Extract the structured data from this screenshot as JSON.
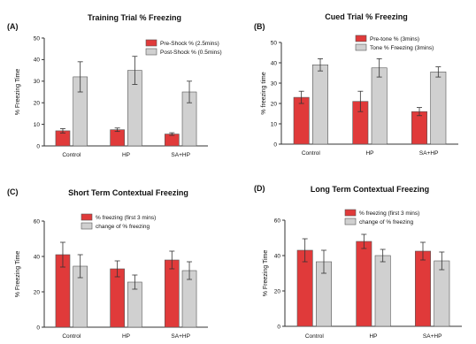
{
  "chart_data": [
    {
      "type": "bar",
      "panel_label": "(A)",
      "title": "Training Trial % Freezing",
      "xlabel": "",
      "ylabel": "% Freezing Time",
      "categories": [
        "Control",
        "HP",
        "SA+HP"
      ],
      "ylim": [
        0,
        50
      ],
      "yticks": [
        "0",
        "10",
        "20",
        "30",
        "40",
        "50"
      ],
      "yticks_values": [
        0,
        10,
        20,
        30,
        40,
        50
      ],
      "legend_position": "top-right",
      "series": [
        {
          "name": "Pre-Shock % (2.5mins)",
          "color": "#e03a3a",
          "values": [
            7,
            7.5,
            5.5
          ],
          "errors": [
            1,
            0.8,
            0.6
          ]
        },
        {
          "name": "Post-Shock % (0.5mins)",
          "color": "#d0d0d0",
          "values": [
            32,
            35,
            25
          ],
          "errors": [
            7,
            6.5,
            5
          ]
        }
      ]
    },
    {
      "type": "bar",
      "panel_label": "(B)",
      "title": "Cued Trial % Freezing",
      "xlabel": "",
      "ylabel": "% freezing time",
      "categories": [
        "Control",
        "HP",
        "SA+HP"
      ],
      "ylim": [
        0,
        50
      ],
      "yticks": [
        "0",
        "10",
        "20",
        "30",
        "40",
        "50"
      ],
      "yticks_values": [
        0,
        10,
        20,
        30,
        40,
        50
      ],
      "legend_position": "top-right",
      "series": [
        {
          "name": "Pre-tone % (3mins)",
          "color": "#e03a3a",
          "values": [
            23,
            21,
            16
          ],
          "errors": [
            3,
            5,
            2
          ]
        },
        {
          "name": "Tone % Freezing (3mins)",
          "color": "#d0d0d0",
          "values": [
            39,
            37.5,
            35.5
          ],
          "errors": [
            3,
            4.5,
            2.5
          ]
        }
      ]
    },
    {
      "type": "bar",
      "panel_label": "(C)",
      "title": "Short Term Contextual Freezing",
      "xlabel": "",
      "ylabel": "% Freezing Time",
      "categories": [
        "Control",
        "HP",
        "SA+HP"
      ],
      "ylim": [
        0,
        60
      ],
      "yticks": [
        "0",
        "20",
        "40",
        "60"
      ],
      "yticks_values": [
        0,
        20,
        40,
        60
      ],
      "legend_position": "top-right",
      "series": [
        {
          "name": "% freezing (first 3 mins)",
          "color": "#e03a3a",
          "values": [
            41,
            33,
            38
          ],
          "errors": [
            7,
            4.5,
            5
          ]
        },
        {
          "name": "change of  % freezing",
          "color": "#d0d0d0",
          "values": [
            34.5,
            25.5,
            32
          ],
          "errors": [
            6.5,
            4,
            5
          ]
        }
      ]
    },
    {
      "type": "bar",
      "panel_label": "(D)",
      "title": "Long Term Contextual Freezing",
      "xlabel": "",
      "ylabel": "% Freezing Time",
      "categories": [
        "Control",
        "HP",
        "SA+HP"
      ],
      "ylim": [
        0,
        60
      ],
      "yticks": [
        "0",
        "20",
        "40",
        "60"
      ],
      "yticks_values": [
        0,
        20,
        40,
        60
      ],
      "legend_position": "top-right",
      "series": [
        {
          "name": "% freezing (first 3 mins)",
          "color": "#e03a3a",
          "values": [
            43,
            48,
            42.5
          ],
          "errors": [
            6.5,
            4,
            5
          ]
        },
        {
          "name": "change of  % freezing",
          "color": "#d0d0d0",
          "values": [
            36.5,
            40,
            37
          ],
          "errors": [
            6.5,
            3.5,
            5
          ]
        }
      ]
    }
  ]
}
